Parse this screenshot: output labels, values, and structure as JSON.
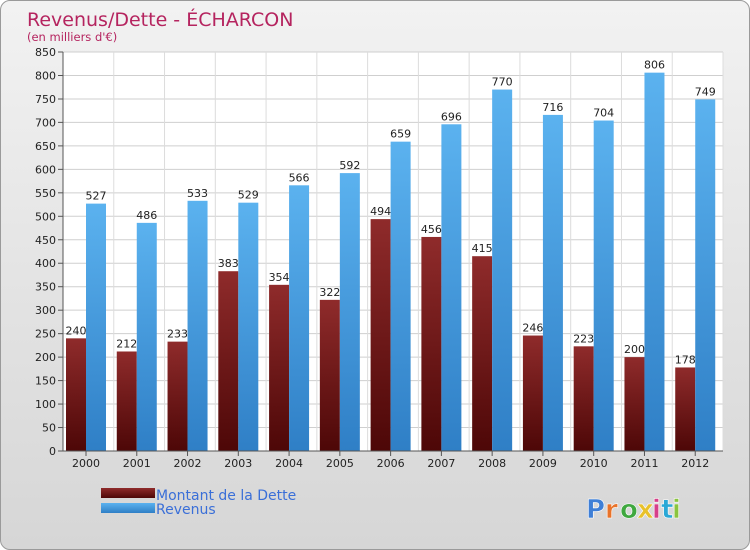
{
  "chart_data": {
    "type": "bar",
    "title": "Revenus/Dette - ÉCHARCON",
    "subtitle": "(en milliers d'€)",
    "categories": [
      "2000",
      "2001",
      "2002",
      "2003",
      "2004",
      "2005",
      "2006",
      "2007",
      "2008",
      "2009",
      "2010",
      "2011",
      "2012"
    ],
    "series": [
      {
        "name": "Montant de la Dette",
        "color": "#8b1a1a",
        "values": [
          240,
          212,
          233,
          383,
          354,
          322,
          494,
          456,
          415,
          246,
          223,
          200,
          178
        ]
      },
      {
        "name": "Revenus",
        "color": "#4ba3e8",
        "values": [
          527,
          486,
          533,
          529,
          566,
          592,
          659,
          696,
          770,
          716,
          704,
          806,
          749
        ]
      }
    ],
    "ylim": [
      0,
      850
    ],
    "ytick_step": 50,
    "grid": true,
    "legend": "bottom-left"
  },
  "logo": {
    "text": "Proxiti",
    "colors": [
      "#3f7fd6",
      "#e8732a",
      "#3fa83f",
      "#e8c12a",
      "#d63f8a",
      "#2aa8d6",
      "#8ac43f"
    ]
  }
}
